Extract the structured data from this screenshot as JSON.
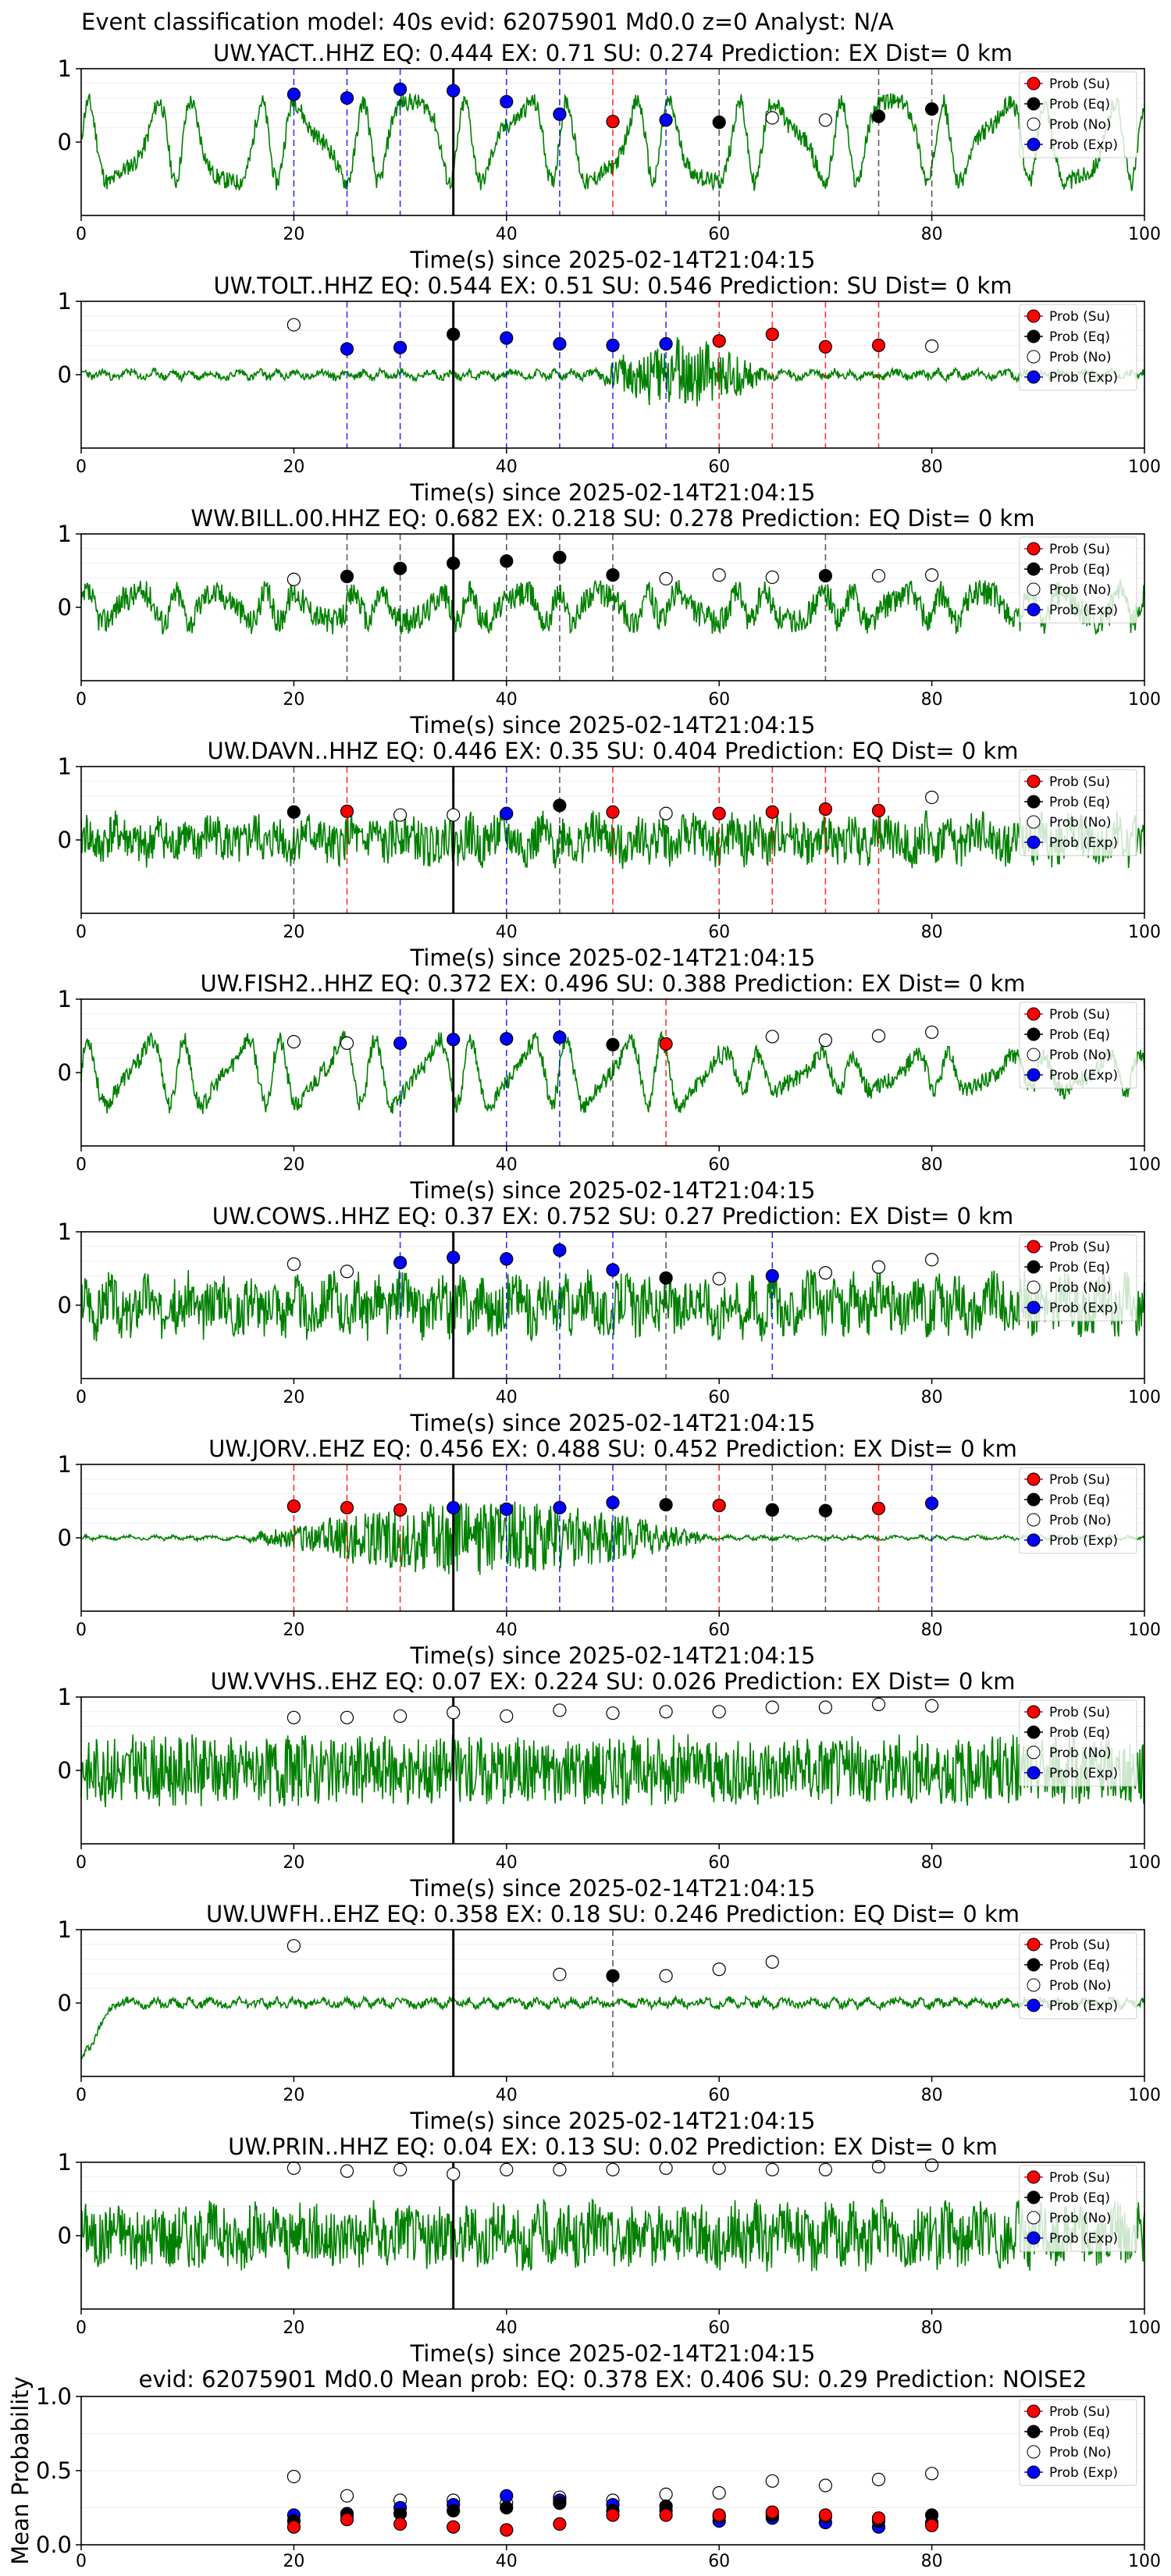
{
  "page_title": "Event classification model: 40s evid: 62075901 Md0.0 z=0 Analyst: N/A",
  "legend": [
    {
      "label": "Prob (Su)",
      "fill": "#ff0000"
    },
    {
      "label": "Prob (Eq)",
      "fill": "#000000"
    },
    {
      "label": "Prob (No)",
      "fill": "#ffffff"
    },
    {
      "label": "Prob (Exp)",
      "fill": "#0000ff"
    }
  ],
  "colors": {
    "waveform": "#008000",
    "su": "#ff0000",
    "eq": "#000000",
    "no": "#ffffff",
    "exp": "#0000ff",
    "origin_line": "#000000"
  },
  "chart_data": [
    {
      "type": "line",
      "station": "UW.YACT..HHZ",
      "title": "UW.YACT..HHZ   EQ: 0.444  EX: 0.71  SU: 0.274   Prediction: EX    Dist= 0 km",
      "xlabel": "Time(s) since 2025-02-14T21:04:15",
      "xlim": [
        0,
        100
      ],
      "ylim": [
        -1,
        1
      ],
      "xticks": [
        0,
        20,
        40,
        60,
        80,
        100
      ],
      "yticks": [
        0,
        1
      ],
      "origin_time": 35,
      "waveform_style": {
        "amp": 0.55,
        "period": 5,
        "noise": 0.12,
        "seed": 11
      },
      "probs": [
        [
          20,
          "exp",
          0.65
        ],
        [
          25,
          "exp",
          0.6
        ],
        [
          30,
          "exp",
          0.72
        ],
        [
          35,
          "exp",
          0.7
        ],
        [
          40,
          "exp",
          0.55
        ],
        [
          45,
          "exp",
          0.38
        ],
        [
          50,
          "su",
          0.28
        ],
        [
          55,
          "exp",
          0.3
        ],
        [
          60,
          "eq",
          0.27
        ],
        [
          65,
          "no",
          0.33
        ],
        [
          70,
          "no",
          0.3
        ],
        [
          75,
          "eq",
          0.35
        ],
        [
          80,
          "eq",
          0.45
        ]
      ]
    },
    {
      "type": "line",
      "station": "UW.TOLT..HHZ",
      "title": "UW.TOLT..HHZ   EQ: 0.544  EX: 0.51  SU: 0.546   Prediction: SU    Dist= 0 km",
      "xlabel": "Time(s) since 2025-02-14T21:04:15",
      "xlim": [
        0,
        100
      ],
      "ylim": [
        -1,
        1
      ],
      "xticks": [
        0,
        20,
        40,
        60,
        80,
        100
      ],
      "yticks": [
        0,
        1
      ],
      "origin_time": 35,
      "waveform_style": {
        "amp": 0.04,
        "period": 2,
        "noise": 0.05,
        "seed": 23,
        "burst": [
          48,
          65,
          0.45
        ]
      },
      "probs": [
        [
          20,
          "no",
          0.68
        ],
        [
          25,
          "exp",
          0.35
        ],
        [
          30,
          "exp",
          0.37
        ],
        [
          35,
          "eq",
          0.55
        ],
        [
          40,
          "exp",
          0.5
        ],
        [
          45,
          "exp",
          0.42
        ],
        [
          50,
          "exp",
          0.4
        ],
        [
          55,
          "exp",
          0.42
        ],
        [
          60,
          "su",
          0.46
        ],
        [
          65,
          "su",
          0.55
        ],
        [
          70,
          "su",
          0.38
        ],
        [
          75,
          "su",
          0.4
        ],
        [
          80,
          "no",
          0.39
        ]
      ]
    },
    {
      "type": "line",
      "station": "WW.BILL.00.HHZ",
      "title": "WW.BILL.00.HHZ   EQ: 0.682  EX: 0.218  SU: 0.278   Prediction: EQ    Dist= 0 km",
      "xlabel": "Time(s) since 2025-02-14T21:04:15",
      "xlim": [
        0,
        100
      ],
      "ylim": [
        -1,
        1
      ],
      "xticks": [
        0,
        20,
        40,
        60,
        80,
        100
      ],
      "yticks": [
        0,
        1
      ],
      "origin_time": 35,
      "waveform_style": {
        "amp": 0.2,
        "period": 4,
        "noise": 0.18,
        "seed": 37
      },
      "probs": [
        [
          20,
          "no",
          0.38
        ],
        [
          25,
          "eq",
          0.42
        ],
        [
          30,
          "eq",
          0.53
        ],
        [
          35,
          "eq",
          0.6
        ],
        [
          40,
          "eq",
          0.63
        ],
        [
          45,
          "eq",
          0.68
        ],
        [
          50,
          "eq",
          0.44
        ],
        [
          55,
          "no",
          0.39
        ],
        [
          60,
          "no",
          0.44
        ],
        [
          65,
          "no",
          0.41
        ],
        [
          70,
          "eq",
          0.43
        ],
        [
          75,
          "no",
          0.43
        ],
        [
          80,
          "no",
          0.44
        ]
      ]
    },
    {
      "type": "line",
      "station": "UW.DAVN..HHZ",
      "title": "UW.DAVN..HHZ   EQ: 0.446  EX: 0.35  SU: 0.404   Prediction: EQ    Dist= 0 km",
      "xlabel": "Time(s) since 2025-02-14T21:04:15",
      "xlim": [
        0,
        100
      ],
      "ylim": [
        -1,
        1
      ],
      "xticks": [
        0,
        20,
        40,
        60,
        80,
        100
      ],
      "yticks": [
        0,
        1
      ],
      "origin_time": 35,
      "waveform_style": {
        "amp": 0.1,
        "period": 3,
        "noise": 0.3,
        "seed": 41
      },
      "probs": [
        [
          20,
          "eq",
          0.38
        ],
        [
          25,
          "su",
          0.39
        ],
        [
          30,
          "no",
          0.34
        ],
        [
          35,
          "no",
          0.34
        ],
        [
          40,
          "exp",
          0.36
        ],
        [
          45,
          "eq",
          0.47
        ],
        [
          50,
          "su",
          0.38
        ],
        [
          55,
          "no",
          0.36
        ],
        [
          60,
          "su",
          0.36
        ],
        [
          65,
          "su",
          0.38
        ],
        [
          70,
          "su",
          0.42
        ],
        [
          75,
          "su",
          0.4
        ],
        [
          80,
          "no",
          0.58
        ]
      ]
    },
    {
      "type": "line",
      "station": "UW.FISH2..HHZ",
      "title": "UW.FISH2..HHZ   EQ: 0.372  EX: 0.496  SU: 0.388   Prediction: EX    Dist= 0 km",
      "xlabel": "Time(s) since 2025-02-14T21:04:15",
      "xlim": [
        0,
        100
      ],
      "ylim": [
        -1,
        1
      ],
      "xticks": [
        0,
        20,
        40,
        60,
        80,
        100
      ],
      "yticks": [
        0,
        1
      ],
      "origin_time": 35,
      "waveform_style": {
        "amp": 0.45,
        "period": 4.5,
        "noise": 0.12,
        "seed": 53,
        "decay": 60
      },
      "probs": [
        [
          20,
          "no",
          0.42
        ],
        [
          25,
          "no",
          0.4
        ],
        [
          30,
          "exp",
          0.4
        ],
        [
          35,
          "exp",
          0.45
        ],
        [
          40,
          "exp",
          0.46
        ],
        [
          45,
          "exp",
          0.48
        ],
        [
          50,
          "eq",
          0.38
        ],
        [
          55,
          "su",
          0.39
        ],
        [
          65,
          "no",
          0.49
        ],
        [
          70,
          "no",
          0.44
        ],
        [
          75,
          "no",
          0.5
        ],
        [
          80,
          "no",
          0.55
        ]
      ]
    },
    {
      "type": "line",
      "station": "UW.COWS..HHZ",
      "title": "UW.COWS..HHZ   EQ: 0.37  EX: 0.752  SU: 0.27   Prediction: EX    Dist= 0 km",
      "xlabel": "Time(s) since 2025-02-14T21:04:15",
      "xlim": [
        0,
        100
      ],
      "ylim": [
        -1,
        1
      ],
      "xticks": [
        0,
        20,
        40,
        60,
        80,
        100
      ],
      "yticks": [
        0,
        1
      ],
      "origin_time": 35,
      "waveform_style": {
        "amp": 0.15,
        "period": 2.5,
        "noise": 0.35,
        "seed": 67
      },
      "probs": [
        [
          20,
          "no",
          0.56
        ],
        [
          25,
          "no",
          0.46
        ],
        [
          30,
          "exp",
          0.58
        ],
        [
          35,
          "exp",
          0.65
        ],
        [
          40,
          "exp",
          0.63
        ],
        [
          45,
          "exp",
          0.75
        ],
        [
          50,
          "exp",
          0.48
        ],
        [
          55,
          "eq",
          0.37
        ],
        [
          60,
          "no",
          0.36
        ],
        [
          65,
          "exp",
          0.4
        ],
        [
          70,
          "no",
          0.44
        ],
        [
          75,
          "no",
          0.52
        ],
        [
          80,
          "no",
          0.62
        ]
      ]
    },
    {
      "type": "line",
      "station": "UW.JORV..EHZ",
      "title": "UW.JORV..EHZ   EQ: 0.456  EX: 0.488  SU: 0.452   Prediction: EX    Dist= 0 km",
      "xlabel": "Time(s) since 2025-02-14T21:04:15",
      "xlim": [
        0,
        100
      ],
      "ylim": [
        -1,
        1
      ],
      "xticks": [
        0,
        20,
        40,
        60,
        80,
        100
      ],
      "yticks": [
        0,
        1
      ],
      "origin_time": 35,
      "waveform_style": {
        "amp": 0.02,
        "period": 2,
        "noise": 0.02,
        "seed": 71,
        "burst": [
          15,
          60,
          0.5
        ]
      },
      "probs": [
        [
          20,
          "su",
          0.43
        ],
        [
          25,
          "su",
          0.41
        ],
        [
          30,
          "su",
          0.38
        ],
        [
          35,
          "exp",
          0.41
        ],
        [
          40,
          "exp",
          0.39
        ],
        [
          45,
          "exp",
          0.41
        ],
        [
          50,
          "exp",
          0.48
        ],
        [
          55,
          "eq",
          0.45
        ],
        [
          60,
          "su",
          0.44
        ],
        [
          65,
          "eq",
          0.38
        ],
        [
          70,
          "eq",
          0.37
        ],
        [
          75,
          "su",
          0.4
        ],
        [
          80,
          "exp",
          0.47
        ]
      ]
    },
    {
      "type": "line",
      "station": "UW.VVHS..EHZ",
      "title": "UW.VVHS..EHZ   EQ: 0.07  EX: 0.224  SU: 0.026   Prediction: EX    Dist= 0 km",
      "xlabel": "Time(s) since 2025-02-14T21:04:15",
      "xlim": [
        0,
        100
      ],
      "ylim": [
        -1,
        1
      ],
      "xticks": [
        0,
        20,
        40,
        60,
        80,
        100
      ],
      "yticks": [
        0,
        1
      ],
      "origin_time": 35,
      "waveform_style": {
        "amp": 0.05,
        "period": 1.5,
        "noise": 0.45,
        "seed": 83
      },
      "probs": [
        [
          20,
          "no",
          0.72
        ],
        [
          25,
          "no",
          0.72
        ],
        [
          30,
          "no",
          0.74
        ],
        [
          35,
          "no",
          0.79
        ],
        [
          40,
          "no",
          0.74
        ],
        [
          45,
          "no",
          0.82
        ],
        [
          50,
          "no",
          0.78
        ],
        [
          55,
          "no",
          0.8
        ],
        [
          60,
          "no",
          0.8
        ],
        [
          65,
          "no",
          0.86
        ],
        [
          70,
          "no",
          0.86
        ],
        [
          75,
          "no",
          0.9
        ],
        [
          80,
          "no",
          0.88
        ]
      ]
    },
    {
      "type": "line",
      "station": "UW.UWFH..EHZ",
      "title": "UW.UWFH..EHZ   EQ: 0.358  EX: 0.18  SU: 0.246   Prediction: EQ    Dist= 0 km",
      "xlabel": "Time(s) since 2025-02-14T21:04:15",
      "xlim": [
        0,
        100
      ],
      "ylim": [
        -1,
        1
      ],
      "xticks": [
        0,
        20,
        40,
        60,
        80,
        100
      ],
      "yticks": [
        0,
        1
      ],
      "origin_time": 35,
      "waveform_style": {
        "amp": 0.04,
        "period": 2,
        "noise": 0.05,
        "seed": 97,
        "start_dip": true
      },
      "probs": [
        [
          20,
          "no",
          0.78
        ],
        [
          45,
          "no",
          0.39
        ],
        [
          50,
          "eq",
          0.37
        ],
        [
          55,
          "no",
          0.37
        ],
        [
          60,
          "no",
          0.46
        ],
        [
          65,
          "no",
          0.56
        ]
      ]
    },
    {
      "type": "line",
      "station": "UW.PRIN..HHZ",
      "title": "UW.PRIN..HHZ   EQ: 0.04  EX: 0.13  SU: 0.02   Prediction: EX    Dist= 0 km",
      "xlabel": "Time(s) since 2025-02-14T21:04:15",
      "xlim": [
        0,
        100
      ],
      "ylim": [
        -1,
        1
      ],
      "xticks": [
        0,
        20,
        40,
        60,
        80,
        100
      ],
      "yticks": [
        0,
        1
      ],
      "origin_time": 35,
      "waveform_style": {
        "amp": 0.1,
        "period": 3,
        "noise": 0.4,
        "seed": 101
      },
      "probs": [
        [
          20,
          "no",
          0.92
        ],
        [
          25,
          "no",
          0.88
        ],
        [
          30,
          "no",
          0.9
        ],
        [
          35,
          "no",
          0.84
        ],
        [
          40,
          "no",
          0.9
        ],
        [
          45,
          "no",
          0.9
        ],
        [
          50,
          "no",
          0.9
        ],
        [
          55,
          "no",
          0.92
        ],
        [
          60,
          "no",
          0.92
        ],
        [
          65,
          "no",
          0.9
        ],
        [
          70,
          "no",
          0.9
        ],
        [
          75,
          "no",
          0.94
        ],
        [
          80,
          "no",
          0.96
        ]
      ]
    },
    {
      "type": "scatter",
      "title": "evid: 62075901  Md0.0   Mean prob:   EQ: 0.378  EX: 0.406  SU: 0.29   Prediction: NOISE2",
      "ylabel": "Mean Probability",
      "xlim": [
        0,
        100
      ],
      "ylim": [
        0,
        1
      ],
      "xticks": [
        0,
        20,
        40,
        60,
        80,
        100
      ],
      "yticks": [
        0.0,
        0.5,
        1.0
      ],
      "x": [
        20,
        25,
        30,
        35,
        40,
        45,
        50,
        55,
        60,
        65,
        70,
        75,
        80
      ],
      "series": [
        {
          "name": "Prob (No)",
          "key": "no",
          "values": [
            0.46,
            0.33,
            0.3,
            0.3,
            0.28,
            0.32,
            0.3,
            0.34,
            0.35,
            0.43,
            0.4,
            0.44,
            0.48
          ]
        },
        {
          "name": "Prob (Exp)",
          "key": "exp",
          "values": [
            0.2,
            0.21,
            0.25,
            0.27,
            0.33,
            0.3,
            0.27,
            0.23,
            0.16,
            0.18,
            0.15,
            0.12,
            0.15
          ]
        },
        {
          "name": "Prob (Eq)",
          "key": "eq",
          "values": [
            0.16,
            0.2,
            0.21,
            0.23,
            0.25,
            0.28,
            0.23,
            0.26,
            0.19,
            0.2,
            0.19,
            0.16,
            0.2
          ]
        },
        {
          "name": "Prob (Su)",
          "key": "su",
          "values": [
            0.12,
            0.17,
            0.14,
            0.12,
            0.1,
            0.14,
            0.2,
            0.2,
            0.2,
            0.22,
            0.2,
            0.18,
            0.13
          ]
        }
      ]
    }
  ]
}
